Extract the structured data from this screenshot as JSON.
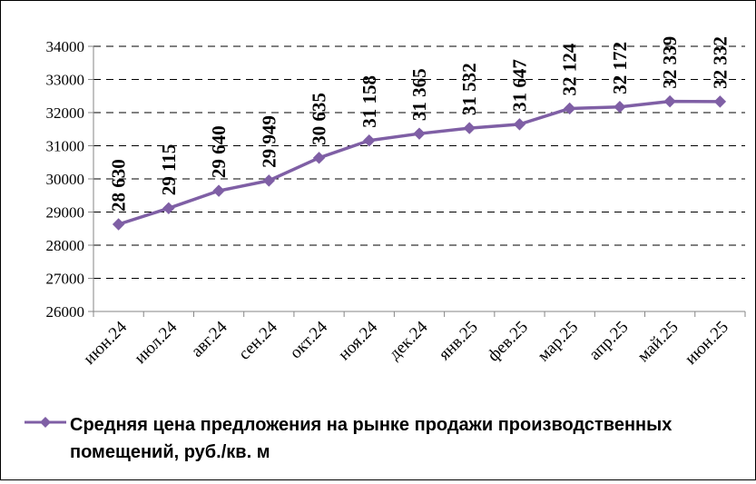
{
  "chart_data": {
    "type": "line",
    "categories": [
      "июн.24",
      "июл.24",
      "авг.24",
      "сен.24",
      "окт.24",
      "ноя.24",
      "дек.24",
      "янв.25",
      "фев.25",
      "мар.25",
      "апр.25",
      "май.25",
      "июн.25"
    ],
    "series": [
      {
        "name": "Средняя цена предложения на рынке продажи  производственных помещений,  руб./кв. м",
        "values": [
          28630,
          29115,
          29640,
          29949,
          30635,
          31158,
          31365,
          31532,
          31647,
          32124,
          32172,
          32339,
          32332
        ],
        "labels": [
          "28 630",
          "29 115",
          "29 640",
          "29 949",
          "30 635",
          "31 158",
          "31 365",
          "31 532",
          "31 647",
          "32 124",
          "32 172",
          "32 339",
          "32 332"
        ],
        "color": "#7F5FA5"
      }
    ],
    "ylim": [
      26000,
      34000
    ],
    "yticks": [
      "26000",
      "27000",
      "28000",
      "29000",
      "30000",
      "31000",
      "32000",
      "33000",
      "34000"
    ],
    "grid": "horizontal-dashed",
    "legend_position": "bottom",
    "title": "",
    "xlabel": "",
    "ylabel": ""
  },
  "colors": {
    "line": "#7F5FA5",
    "axis": "#868686",
    "grid": "#000000"
  }
}
